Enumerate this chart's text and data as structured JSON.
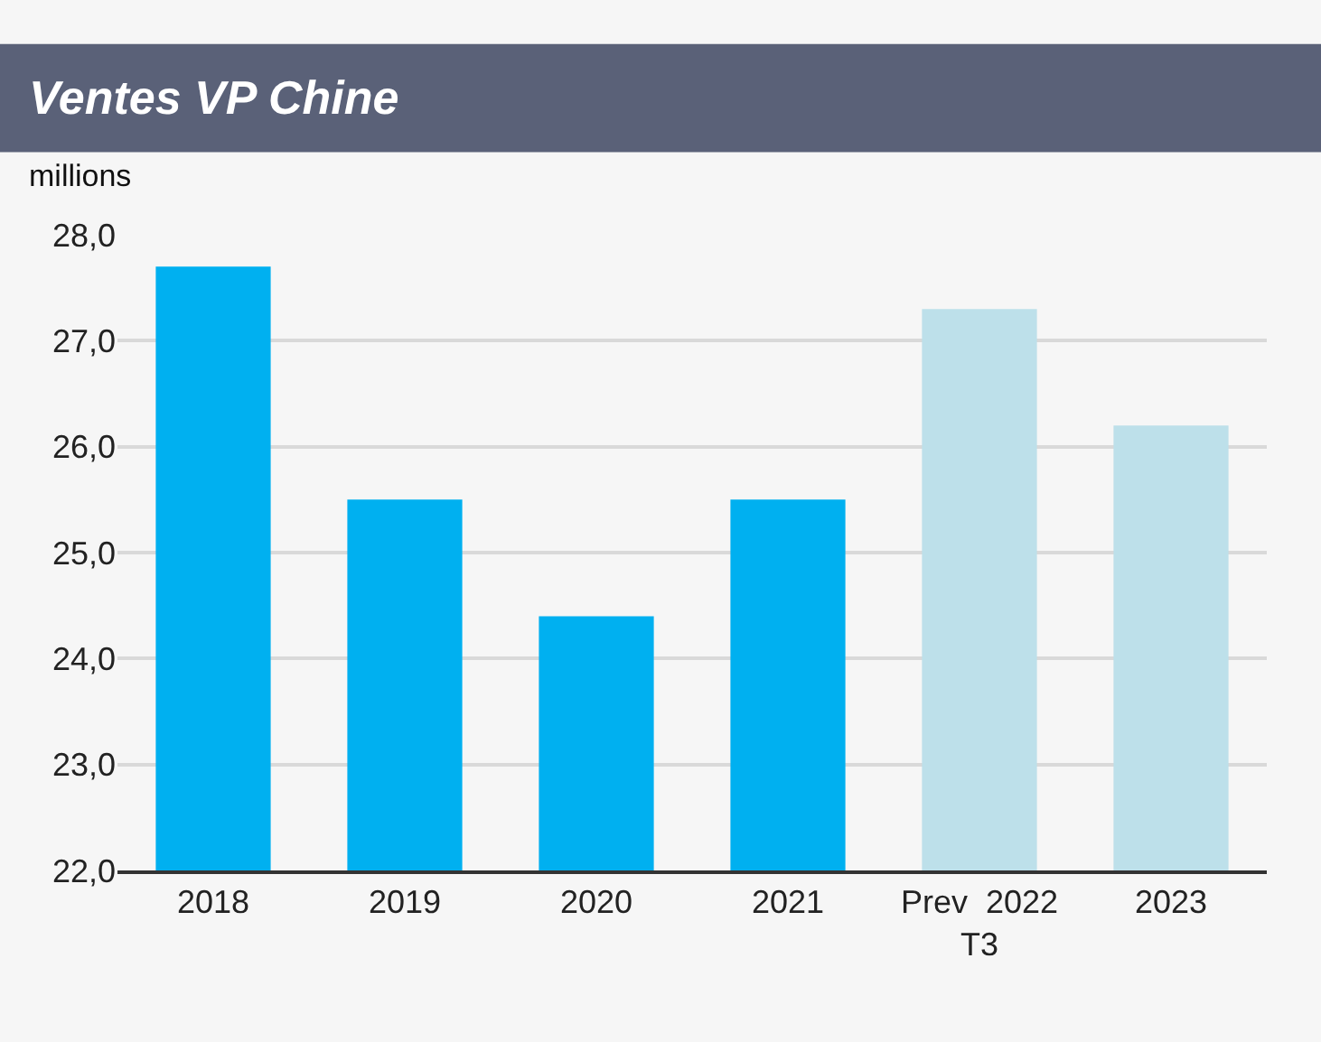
{
  "chart_data": {
    "type": "bar",
    "title": "Ventes VP Chine",
    "ylabel": "millions",
    "categories": [
      "2018",
      "2019",
      "2020",
      "2021",
      "Prev  2022\nT3",
      "2023"
    ],
    "values": [
      27.7,
      25.5,
      24.4,
      25.5,
      27.3,
      26.2
    ],
    "colors": [
      "#00b0f0",
      "#00b0f0",
      "#00b0f0",
      "#00b0f0",
      "#bde0ea",
      "#bde0ea"
    ],
    "ylim": [
      22,
      28
    ],
    "yticks": [
      {
        "value": 22,
        "label": "22,0"
      },
      {
        "value": 23,
        "label": "23,0"
      },
      {
        "value": 24,
        "label": "24,0"
      },
      {
        "value": 25,
        "label": "25,0"
      },
      {
        "value": 26,
        "label": "26,0"
      },
      {
        "value": 27,
        "label": "27,0"
      },
      {
        "value": 28,
        "label": "28,0"
      }
    ],
    "grid": "y"
  }
}
